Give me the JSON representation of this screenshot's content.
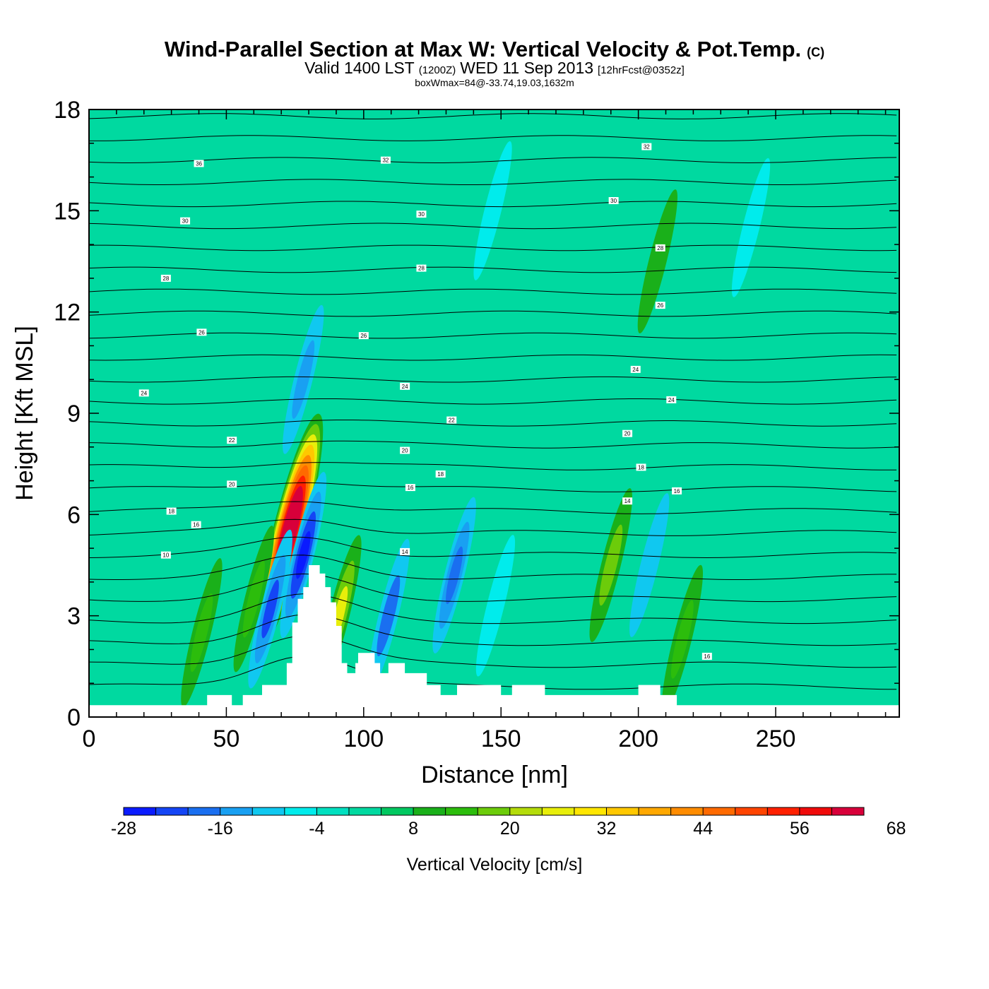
{
  "header": {
    "title": "Wind-Parallel Section at Max W: Vertical Velocity & Pot.Temp.",
    "copyright": "(C)",
    "valid_prefix": "Valid 1400 LST",
    "valid_utc": "(1200Z)",
    "valid_date": "WED 11 Sep 2013",
    "forecast": "[12hrFcst@0352z]",
    "box_info": "boxWmax=84@-33.74,19.03,1632m"
  },
  "colors": {
    "background_field": "#00d9a0",
    "terrain": "#ffffff",
    "contour": "#000000",
    "colorbar": [
      "#0a1bff",
      "#1445f5",
      "#1a6ff0",
      "#19a0f2",
      "#10c8f0",
      "#00ecec",
      "#00e0c0",
      "#00d9a0",
      "#00c860",
      "#1ab01a",
      "#2cbd0c",
      "#6ccc0a",
      "#b4dc0a",
      "#e8ee0a",
      "#ffe600",
      "#ffc800",
      "#ffa800",
      "#ff8c00",
      "#ff6a00",
      "#ff4400",
      "#ff2000",
      "#f00a0a",
      "#d8003a"
    ]
  },
  "chart_data": {
    "type": "heatmap",
    "title": "Wind-Parallel Section at Max W: Vertical Velocity & Pot.Temp.",
    "xlabel": "Distance [nm]",
    "ylabel": "Height [Kft MSL]",
    "xlim": [
      0,
      295
    ],
    "ylim": [
      0,
      18
    ],
    "x_ticks": [
      "0",
      "50",
      "100",
      "150",
      "200",
      "250"
    ],
    "x_tick_values": [
      0,
      50,
      100,
      150,
      200,
      250
    ],
    "y_ticks": [
      "0",
      "3",
      "6",
      "9",
      "12",
      "15",
      "18"
    ],
    "y_tick_values": [
      0,
      3,
      6,
      9,
      12,
      15,
      18
    ],
    "colorbar_label": "Vertical Velocity [cm/s]",
    "colorbar_min": -28,
    "colorbar_step": 4,
    "colorbar_ticks": [
      "-28",
      "-16",
      "-4",
      "8",
      "20",
      "32",
      "44",
      "56",
      "68"
    ],
    "terrain_profile": [
      [
        0,
        0.35
      ],
      [
        10,
        0.35
      ],
      [
        40,
        0.35
      ],
      [
        43,
        0.35
      ],
      [
        43,
        0.65
      ],
      [
        52,
        0.65
      ],
      [
        52,
        0.35
      ],
      [
        56,
        0.35
      ],
      [
        56,
        0.65
      ],
      [
        63,
        0.65
      ],
      [
        63,
        0.95
      ],
      [
        72,
        0.95
      ],
      [
        72,
        1.6
      ],
      [
        74,
        1.6
      ],
      [
        74,
        2.8
      ],
      [
        76,
        2.8
      ],
      [
        76,
        3.5
      ],
      [
        78,
        3.5
      ],
      [
        78,
        3.85
      ],
      [
        80,
        3.85
      ],
      [
        80,
        4.5
      ],
      [
        84,
        4.5
      ],
      [
        84,
        4.25
      ],
      [
        86,
        4.25
      ],
      [
        86,
        3.85
      ],
      [
        88,
        3.85
      ],
      [
        88,
        3.4
      ],
      [
        90,
        3.4
      ],
      [
        90,
        2.7
      ],
      [
        92,
        2.7
      ],
      [
        92,
        1.6
      ],
      [
        94,
        1.6
      ],
      [
        94,
        1.3
      ],
      [
        97,
        1.3
      ],
      [
        97,
        1.6
      ],
      [
        98,
        1.6
      ],
      [
        98,
        1.9
      ],
      [
        104,
        1.9
      ],
      [
        104,
        1.6
      ],
      [
        106,
        1.6
      ],
      [
        106,
        1.3
      ],
      [
        109,
        1.3
      ],
      [
        109,
        1.6
      ],
      [
        115,
        1.6
      ],
      [
        115,
        1.3
      ],
      [
        123,
        1.3
      ],
      [
        123,
        0.95
      ],
      [
        128,
        0.95
      ],
      [
        128,
        0.65
      ],
      [
        134,
        0.65
      ],
      [
        134,
        0.95
      ],
      [
        150,
        0.95
      ],
      [
        150,
        0.65
      ],
      [
        154,
        0.65
      ],
      [
        154,
        0.95
      ],
      [
        166,
        0.95
      ],
      [
        166,
        0.65
      ],
      [
        200,
        0.65
      ],
      [
        200,
        0.95
      ],
      [
        208,
        0.95
      ],
      [
        208,
        0.65
      ],
      [
        214,
        0.65
      ],
      [
        214,
        0.35
      ],
      [
        295,
        0.35
      ]
    ],
    "vertical_velocity_features": [
      {
        "x": 73,
        "z": 5.5,
        "w": 84,
        "note": "max updraft"
      },
      {
        "x": 66,
        "z": 3.2,
        "w": -22
      },
      {
        "x": 78,
        "z": 4.8,
        "w": -28
      },
      {
        "x": 41,
        "z": 2.5,
        "w": 14
      },
      {
        "x": 60,
        "z": 3.5,
        "w": 12
      },
      {
        "x": 91,
        "z": 3.0,
        "w": 24
      },
      {
        "x": 109,
        "z": 3.0,
        "w": -18
      },
      {
        "x": 133,
        "z": 4.2,
        "w": -20
      },
      {
        "x": 148,
        "z": 3.3,
        "w": -8
      },
      {
        "x": 190,
        "z": 4.5,
        "w": 18
      },
      {
        "x": 204,
        "z": 4.5,
        "w": -10
      },
      {
        "x": 216,
        "z": 2.3,
        "w": 14
      },
      {
        "x": 78,
        "z": 10.0,
        "w": -14
      },
      {
        "x": 147,
        "z": 15.0,
        "w": -6
      },
      {
        "x": 241,
        "z": 14.5,
        "w": -6
      },
      {
        "x": 207,
        "z": 13.5,
        "w": 10
      }
    ],
    "theta_labels": [
      {
        "x": 40,
        "z": 16.4,
        "text": "36"
      },
      {
        "x": 35,
        "z": 14.7,
        "text": "30"
      },
      {
        "x": 28,
        "z": 13.0,
        "text": "28"
      },
      {
        "x": 41,
        "z": 11.4,
        "text": "26"
      },
      {
        "x": 20,
        "z": 9.6,
        "text": "24"
      },
      {
        "x": 52,
        "z": 8.2,
        "text": "22"
      },
      {
        "x": 52,
        "z": 6.9,
        "text": "20"
      },
      {
        "x": 30,
        "z": 6.1,
        "text": "18"
      },
      {
        "x": 39,
        "z": 5.7,
        "text": "16"
      },
      {
        "x": 28,
        "z": 4.8,
        "text": "10"
      },
      {
        "x": 108,
        "z": 16.5,
        "text": "32"
      },
      {
        "x": 121,
        "z": 14.9,
        "text": "30"
      },
      {
        "x": 121,
        "z": 13.3,
        "text": "28"
      },
      {
        "x": 100,
        "z": 11.3,
        "text": "26"
      },
      {
        "x": 115,
        "z": 9.8,
        "text": "24"
      },
      {
        "x": 132,
        "z": 8.8,
        "text": "22"
      },
      {
        "x": 115,
        "z": 7.9,
        "text": "20"
      },
      {
        "x": 128,
        "z": 7.2,
        "text": "18"
      },
      {
        "x": 117,
        "z": 6.8,
        "text": "16"
      },
      {
        "x": 115,
        "z": 4.9,
        "text": "14"
      },
      {
        "x": 203,
        "z": 16.9,
        "text": "32"
      },
      {
        "x": 191,
        "z": 15.3,
        "text": "30"
      },
      {
        "x": 208,
        "z": 13.9,
        "text": "28"
      },
      {
        "x": 208,
        "z": 12.2,
        "text": "26"
      },
      {
        "x": 199,
        "z": 10.3,
        "text": "24"
      },
      {
        "x": 212,
        "z": 9.4,
        "text": "24"
      },
      {
        "x": 196,
        "z": 8.4,
        "text": "20"
      },
      {
        "x": 201,
        "z": 7.4,
        "text": "18"
      },
      {
        "x": 214,
        "z": 6.7,
        "text": "16"
      },
      {
        "x": 196,
        "z": 6.4,
        "text": "14"
      },
      {
        "x": 225,
        "z": 1.8,
        "text": "16"
      }
    ]
  }
}
